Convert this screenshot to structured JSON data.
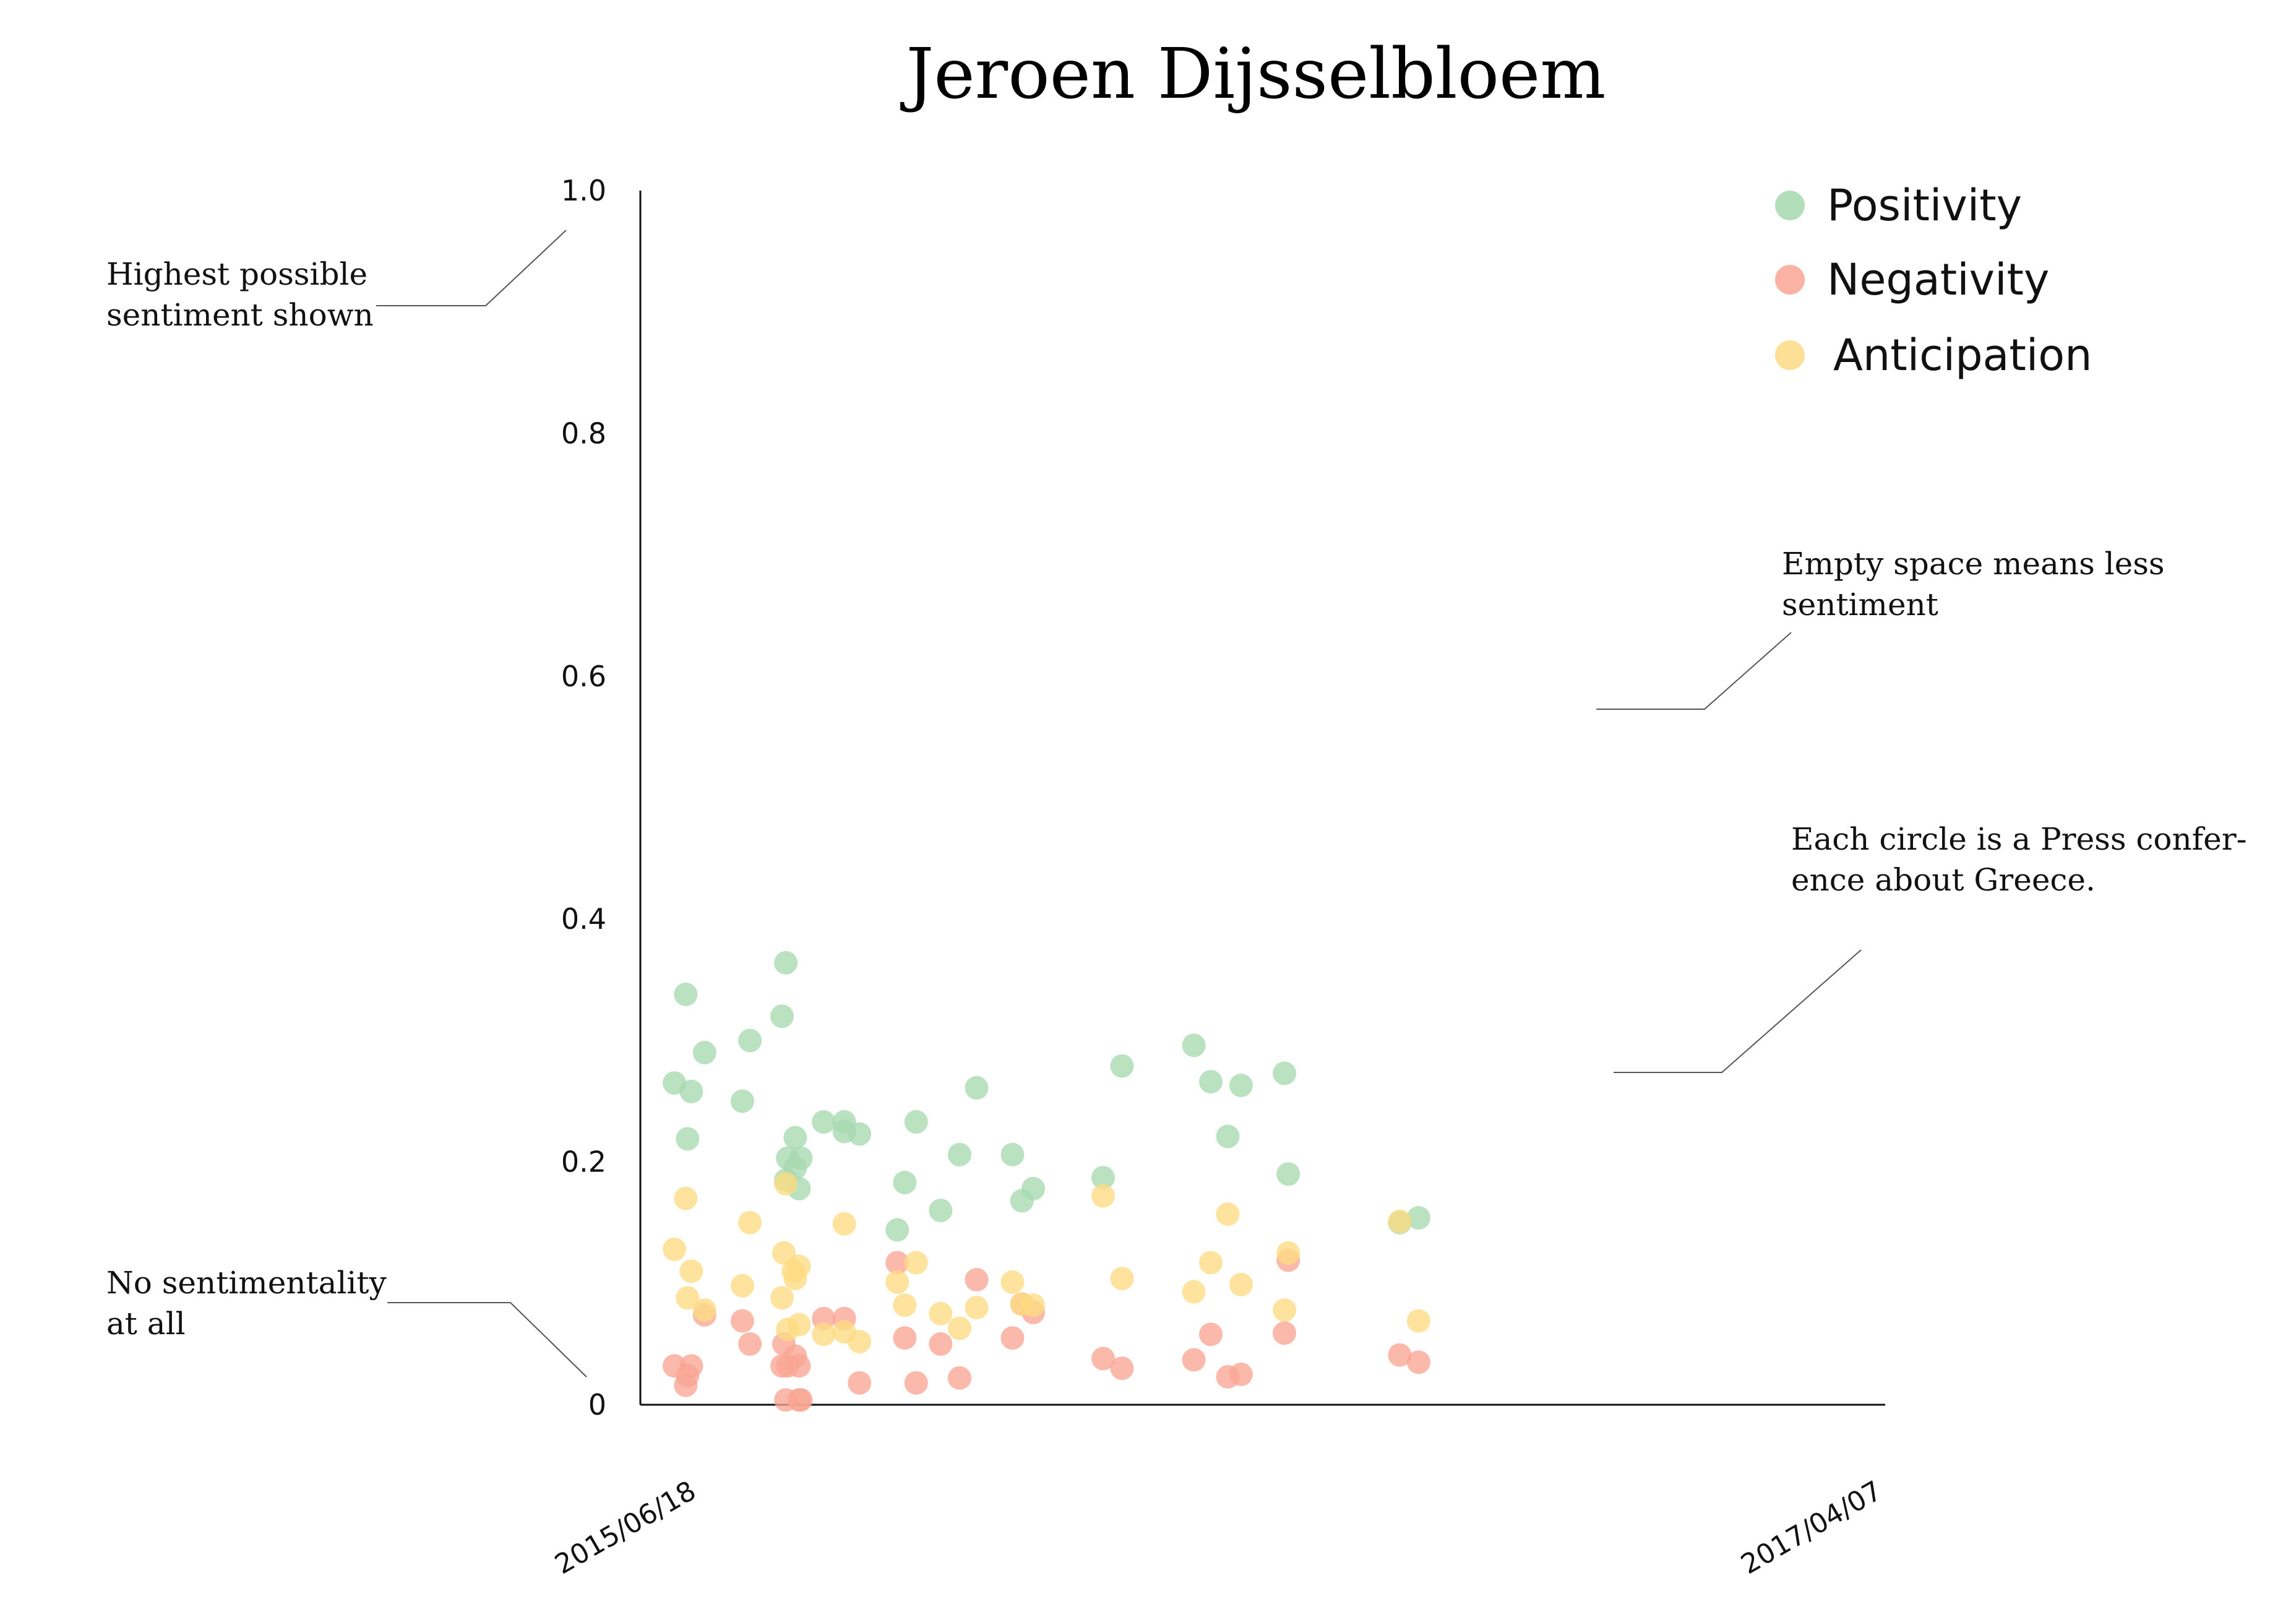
{
  "chart_data": {
    "type": "scatter",
    "title": "Jeroen Dijsselbloem",
    "xlabel": "",
    "ylabel": "",
    "xlim": [
      "2015/06/18",
      "2017/04/07"
    ],
    "x_tick_labels": [
      "2015/06/18",
      "2017/04/07"
    ],
    "ylim": [
      0,
      1.0
    ],
    "y_ticks": [
      {
        "value": 0,
        "label": "0"
      },
      {
        "value": 0.2,
        "label": "0.2"
      },
      {
        "value": 0.4,
        "label": "0.4"
      },
      {
        "value": 0.6,
        "label": "0.6"
      },
      {
        "value": 0.8,
        "label": "0.8"
      },
      {
        "value": 1.0,
        "label": "1.0"
      }
    ],
    "grid": false,
    "legend_position": "top-right",
    "series": [
      {
        "name": "Positivity",
        "color": "#a6d8ae",
        "points": [
          {
            "x": "2015/07/06",
            "y": 0.265
          },
          {
            "x": "2015/07/12",
            "y": 0.338
          },
          {
            "x": "2015/07/13",
            "y": 0.219
          },
          {
            "x": "2015/07/15",
            "y": 0.258
          },
          {
            "x": "2015/07/22",
            "y": 0.29
          },
          {
            "x": "2015/08/11",
            "y": 0.25
          },
          {
            "x": "2015/08/15",
            "y": 0.3
          },
          {
            "x": "2015/09/01",
            "y": 0.32
          },
          {
            "x": "2015/09/03",
            "y": 0.185
          },
          {
            "x": "2015/09/03",
            "y": 0.364
          },
          {
            "x": "2015/09/04",
            "y": 0.203
          },
          {
            "x": "2015/09/08",
            "y": 0.22
          },
          {
            "x": "2015/09/08",
            "y": 0.195
          },
          {
            "x": "2015/09/10",
            "y": 0.178
          },
          {
            "x": "2015/09/11",
            "y": 0.203
          },
          {
            "x": "2015/09/23",
            "y": 0.233
          },
          {
            "x": "2015/10/04",
            "y": 0.225
          },
          {
            "x": "2015/10/04",
            "y": 0.233
          },
          {
            "x": "2015/10/12",
            "y": 0.223
          },
          {
            "x": "2015/11/01",
            "y": 0.144
          },
          {
            "x": "2015/11/05",
            "y": 0.183
          },
          {
            "x": "2015/11/11",
            "y": 0.233
          },
          {
            "x": "2015/11/24",
            "y": 0.16
          },
          {
            "x": "2015/12/04",
            "y": 0.206
          },
          {
            "x": "2015/12/13",
            "y": 0.261
          },
          {
            "x": "2016/01/01",
            "y": 0.206
          },
          {
            "x": "2016/01/06",
            "y": 0.168
          },
          {
            "x": "2016/01/12",
            "y": 0.178
          },
          {
            "x": "2016/02/18",
            "y": 0.187
          },
          {
            "x": "2016/02/28",
            "y": 0.279
          },
          {
            "x": "2016/04/06",
            "y": 0.296
          },
          {
            "x": "2016/04/15",
            "y": 0.266
          },
          {
            "x": "2016/04/24",
            "y": 0.221
          },
          {
            "x": "2016/05/01",
            "y": 0.263
          },
          {
            "x": "2016/05/24",
            "y": 0.273
          },
          {
            "x": "2016/05/26",
            "y": 0.19
          },
          {
            "x": "2016/07/24",
            "y": 0.15
          },
          {
            "x": "2016/08/03",
            "y": 0.154
          }
        ]
      },
      {
        "name": "Negativity",
        "color": "#f8a594",
        "points": [
          {
            "x": "2015/07/06",
            "y": 0.032
          },
          {
            "x": "2015/07/12",
            "y": 0.016
          },
          {
            "x": "2015/07/13",
            "y": 0.024
          },
          {
            "x": "2015/07/15",
            "y": 0.032
          },
          {
            "x": "2015/07/22",
            "y": 0.074
          },
          {
            "x": "2015/08/11",
            "y": 0.069
          },
          {
            "x": "2015/08/15",
            "y": 0.05
          },
          {
            "x": "2015/09/01",
            "y": 0.032
          },
          {
            "x": "2015/09/02",
            "y": 0.05
          },
          {
            "x": "2015/09/03",
            "y": 0.004
          },
          {
            "x": "2015/09/04",
            "y": 0.032
          },
          {
            "x": "2015/09/08",
            "y": 0.04
          },
          {
            "x": "2015/09/10",
            "y": 0.032
          },
          {
            "x": "2015/09/10",
            "y": 0.004
          },
          {
            "x": "2015/09/11",
            "y": 0.004
          },
          {
            "x": "2015/09/23",
            "y": 0.071
          },
          {
            "x": "2015/10/04",
            "y": 0.071
          },
          {
            "x": "2015/10/12",
            "y": 0.018
          },
          {
            "x": "2015/11/01",
            "y": 0.117
          },
          {
            "x": "2015/11/05",
            "y": 0.055
          },
          {
            "x": "2015/11/11",
            "y": 0.018
          },
          {
            "x": "2015/11/24",
            "y": 0.05
          },
          {
            "x": "2015/12/04",
            "y": 0.022
          },
          {
            "x": "2015/12/13",
            "y": 0.103
          },
          {
            "x": "2016/01/01",
            "y": 0.055
          },
          {
            "x": "2016/01/06",
            "y": 0.083
          },
          {
            "x": "2016/01/12",
            "y": 0.076
          },
          {
            "x": "2016/02/18",
            "y": 0.038
          },
          {
            "x": "2016/02/28",
            "y": 0.03
          },
          {
            "x": "2016/04/06",
            "y": 0.037
          },
          {
            "x": "2016/04/15",
            "y": 0.058
          },
          {
            "x": "2016/04/24",
            "y": 0.023
          },
          {
            "x": "2016/05/01",
            "y": 0.025
          },
          {
            "x": "2016/05/24",
            "y": 0.059
          },
          {
            "x": "2016/05/26",
            "y": 0.119
          },
          {
            "x": "2016/07/24",
            "y": 0.041
          },
          {
            "x": "2016/08/03",
            "y": 0.035
          }
        ]
      },
      {
        "name": "Anticipation",
        "color": "#fddb82",
        "points": [
          {
            "x": "2015/07/06",
            "y": 0.128
          },
          {
            "x": "2015/07/12",
            "y": 0.17
          },
          {
            "x": "2015/07/13",
            "y": 0.088
          },
          {
            "x": "2015/07/15",
            "y": 0.11
          },
          {
            "x": "2015/07/22",
            "y": 0.078
          },
          {
            "x": "2015/08/11",
            "y": 0.098
          },
          {
            "x": "2015/08/15",
            "y": 0.15
          },
          {
            "x": "2015/09/01",
            "y": 0.088
          },
          {
            "x": "2015/09/02",
            "y": 0.125
          },
          {
            "x": "2015/09/03",
            "y": 0.182
          },
          {
            "x": "2015/09/04",
            "y": 0.062
          },
          {
            "x": "2015/09/07",
            "y": 0.11
          },
          {
            "x": "2015/09/08",
            "y": 0.104
          },
          {
            "x": "2015/09/10",
            "y": 0.066
          },
          {
            "x": "2015/09/10",
            "y": 0.114
          },
          {
            "x": "2015/09/23",
            "y": 0.058
          },
          {
            "x": "2015/10/04",
            "y": 0.149
          },
          {
            "x": "2015/10/04",
            "y": 0.06
          },
          {
            "x": "2015/10/12",
            "y": 0.052
          },
          {
            "x": "2015/11/01",
            "y": 0.101
          },
          {
            "x": "2015/11/05",
            "y": 0.082
          },
          {
            "x": "2015/11/11",
            "y": 0.117
          },
          {
            "x": "2015/11/24",
            "y": 0.075
          },
          {
            "x": "2015/12/04",
            "y": 0.063
          },
          {
            "x": "2015/12/13",
            "y": 0.08
          },
          {
            "x": "2016/01/01",
            "y": 0.101
          },
          {
            "x": "2016/01/06",
            "y": 0.083
          },
          {
            "x": "2016/01/12",
            "y": 0.082
          },
          {
            "x": "2016/02/18",
            "y": 0.172
          },
          {
            "x": "2016/02/28",
            "y": 0.104
          },
          {
            "x": "2016/04/06",
            "y": 0.093
          },
          {
            "x": "2016/04/15",
            "y": 0.117
          },
          {
            "x": "2016/04/24",
            "y": 0.157
          },
          {
            "x": "2016/05/01",
            "y": 0.099
          },
          {
            "x": "2016/05/24",
            "y": 0.078
          },
          {
            "x": "2016/05/26",
            "y": 0.125
          },
          {
            "x": "2016/07/24",
            "y": 0.151
          },
          {
            "x": "2016/08/03",
            "y": 0.069
          }
        ]
      }
    ],
    "annotations": [
      {
        "text": "Highest possible sentiment shown",
        "lines": [
          "Highest possible",
          "sentiment shown"
        ]
      },
      {
        "text": "No sentimentality at all",
        "lines": [
          "No sentimentality",
          "at all"
        ]
      },
      {
        "text": "Empty space means less sentiment",
        "lines": [
          "Empty space means less",
          "sentiment"
        ]
      },
      {
        "text": "Each circle is a Press conference about Greece.",
        "lines": [
          "Each circle is a Press confer-",
          "ence about Greece."
        ]
      }
    ]
  }
}
